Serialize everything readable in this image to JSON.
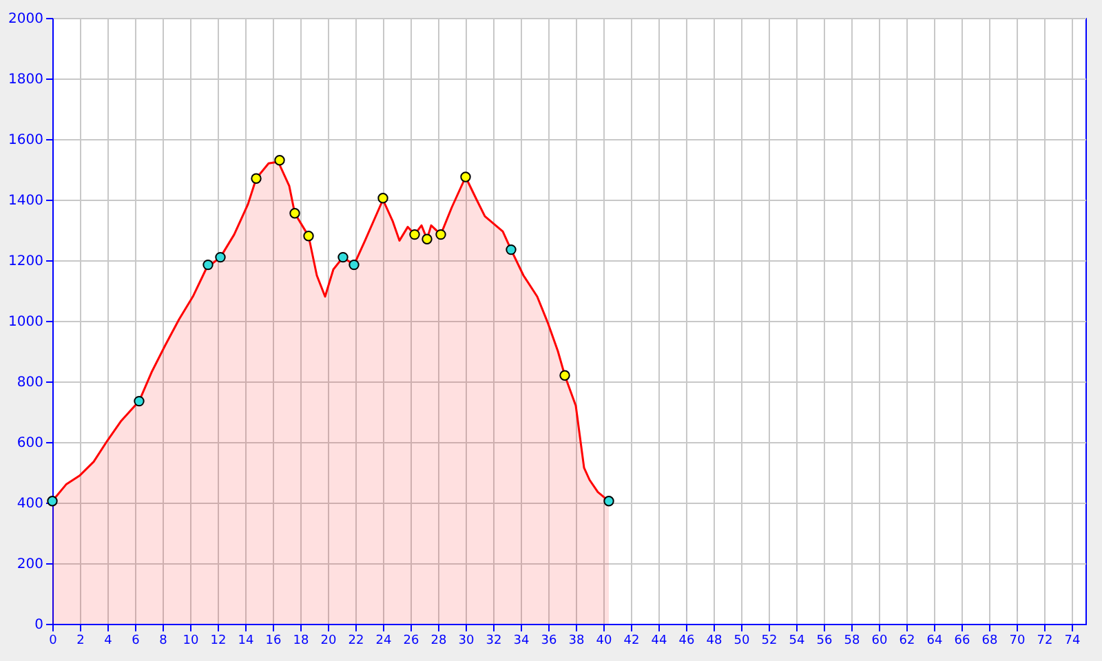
{
  "chart_data": {
    "type": "area",
    "xlim": [
      0,
      75
    ],
    "ylim": [
      0,
      2000
    ],
    "xticks": [
      0,
      2,
      4,
      6,
      8,
      10,
      12,
      14,
      16,
      18,
      20,
      22,
      24,
      26,
      28,
      30,
      32,
      34,
      36,
      38,
      40,
      42,
      44,
      46,
      48,
      50,
      52,
      54,
      56,
      58,
      60,
      62,
      64,
      66,
      68,
      70,
      72,
      74
    ],
    "yticks": [
      0,
      200,
      400,
      600,
      800,
      1000,
      1200,
      1400,
      1600,
      1800,
      2000
    ],
    "grid": true,
    "series": [
      {
        "color": "#ff0000",
        "x": [
          0,
          1,
          2,
          3,
          4,
          5,
          6.3,
          7.2,
          8.2,
          9.2,
          10.2,
          11.2,
          12.2,
          13.2,
          14.2,
          14.8,
          15.7,
          16.4,
          17.2,
          17.6,
          18.2,
          18.6,
          19.2,
          19.8,
          20.4,
          21.1,
          21.9,
          22.7,
          24.0,
          24.7,
          25.2,
          25.8,
          26.3,
          26.8,
          27.2,
          27.5,
          28.2,
          29.0,
          30.0,
          30.8,
          31.4,
          32.7,
          33.3,
          34.2,
          35.2,
          36.0,
          36.7,
          37.2,
          38.0,
          38.6,
          39.0,
          39.6,
          40.4
        ],
        "values": [
          405,
          460,
          490,
          535,
          605,
          670,
          735,
          830,
          920,
          1005,
          1080,
          1175,
          1210,
          1285,
          1385,
          1470,
          1520,
          1525,
          1445,
          1355,
          1310,
          1280,
          1150,
          1080,
          1170,
          1210,
          1185,
          1265,
          1400,
          1330,
          1265,
          1310,
          1285,
          1315,
          1270,
          1315,
          1285,
          1375,
          1475,
          1400,
          1345,
          1295,
          1235,
          1150,
          1080,
          990,
          900,
          820,
          720,
          515,
          475,
          435,
          405
        ]
      },
      {
        "type": "scatter",
        "marker": "circle",
        "color": "#33dddd",
        "x": [
          0,
          6.3,
          11.3,
          12.2,
          21.1,
          21.9,
          33.3,
          40.4
        ],
        "values": [
          405,
          735,
          1185,
          1210,
          1210,
          1185,
          1235,
          405
        ]
      },
      {
        "type": "scatter",
        "marker": "circle",
        "color": "#ffff00",
        "x": [
          14.8,
          16.5,
          17.6,
          18.6,
          24.0,
          26.3,
          27.2,
          28.2,
          30.0,
          37.2
        ],
        "values": [
          1470,
          1530,
          1355,
          1280,
          1405,
          1285,
          1270,
          1285,
          1475,
          820
        ]
      }
    ]
  }
}
